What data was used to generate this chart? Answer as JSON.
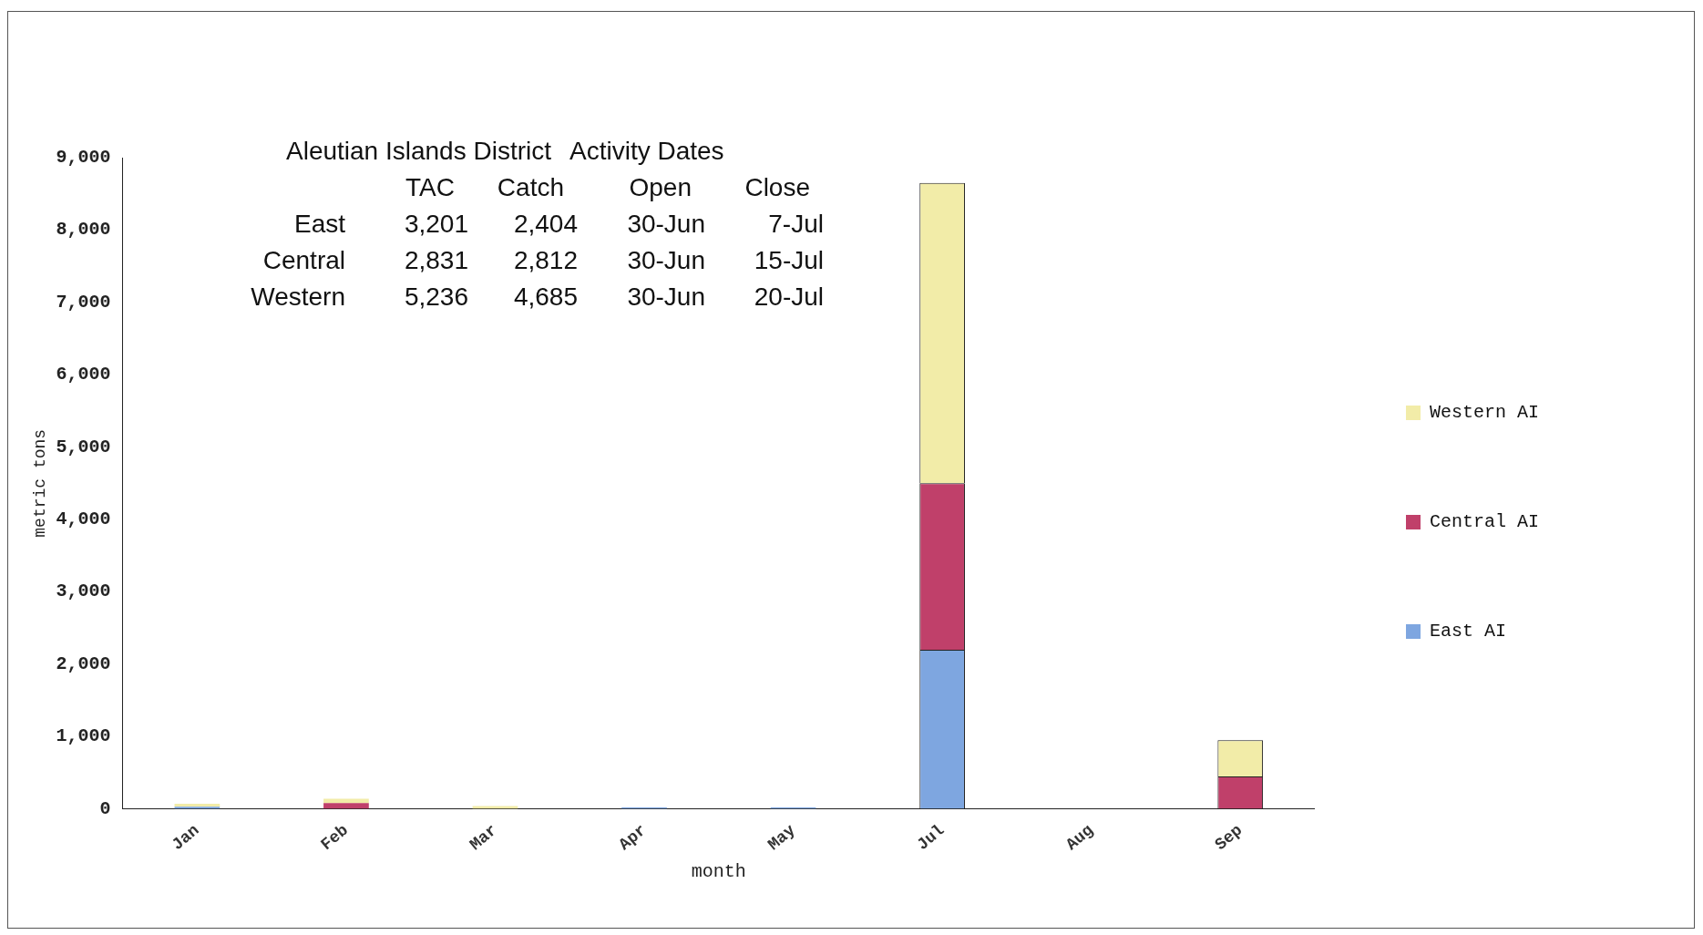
{
  "chart_data": {
    "type": "bar",
    "stacked": true,
    "xlabel": "month",
    "ylabel": "metric tons",
    "categories": [
      "Jan",
      "Feb",
      "Mar",
      "Apr",
      "May",
      "Jul",
      "Aug",
      "Sep"
    ],
    "series": [
      {
        "name": "East AI",
        "color": "#7ea6e0",
        "values": [
          30,
          0,
          null,
          20,
          20,
          2200,
          0,
          0
        ]
      },
      {
        "name": "Central AI",
        "color": "#c0406a",
        "values": [
          0,
          80,
          0,
          0,
          0,
          2300,
          0,
          450
        ]
      },
      {
        "name": "Western AI",
        "color": "#f2eca8",
        "values": [
          40,
          60,
          40,
          0,
          0,
          4150,
          null,
          500
        ]
      }
    ],
    "ylim": [
      0,
      9000
    ],
    "yticks": [
      0,
      {
        "value": 1000,
        "label": "1,000"
      },
      {
        "value": 2000,
        "label": "2,000"
      },
      {
        "value": 3000,
        "label": "3,000"
      },
      {
        "value": 4000,
        "label": "4,000"
      },
      {
        "value": 5000,
        "label": "5,000"
      },
      {
        "value": 6000,
        "label": "6,000"
      },
      {
        "value": 7000,
        "label": "7,000"
      },
      {
        "value": 8000,
        "label": "8,000"
      },
      {
        "value": 9000,
        "label": "9,000"
      }
    ],
    "legend": "right",
    "annotations": [
      "Aleutian Islands District\tActivity Dates",
      "\tTAC\tCatch\tOpen\tClose",
      "East\t3,201\t2,404\t30-Jun\t7-Jul",
      "Central\t2,831\t2,812\t30-Jun\t15-Jul",
      "Western\t5,236\t4,685\t30-Jun\t20-Jul"
    ]
  }
}
